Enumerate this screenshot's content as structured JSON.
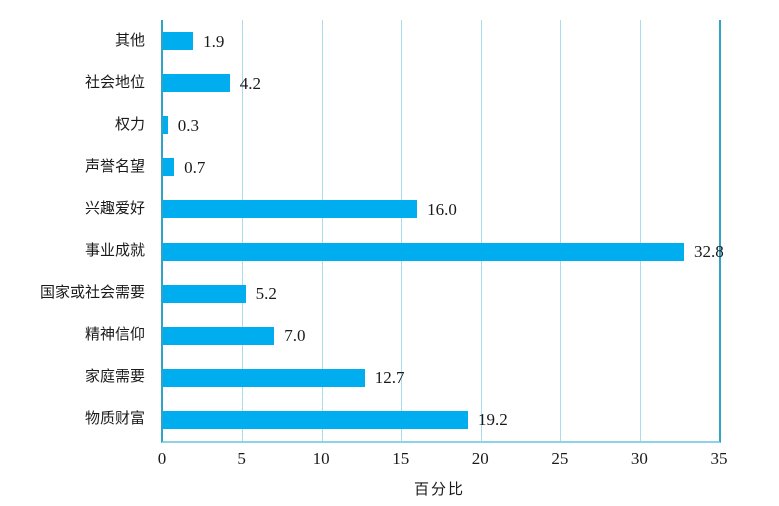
{
  "chart_data": {
    "type": "bar",
    "orientation": "horizontal",
    "title": "",
    "xlabel": "百分比",
    "ylabel": "",
    "categories": [
      "其他",
      "社会地位",
      "权力",
      "声誉名望",
      "兴趣爱好",
      "事业成就",
      "国家或社会需要",
      "精神信仰",
      "家庭需要",
      "物质财富"
    ],
    "values": [
      1.9,
      4.2,
      0.3,
      0.7,
      16.0,
      32.8,
      5.2,
      7.0,
      12.7,
      19.2
    ],
    "value_labels": [
      "1.9",
      "4.2",
      "0.3",
      "0.7",
      "16.0",
      "32.8",
      "5.2",
      "7.0",
      "12.7",
      "19.2"
    ],
    "xlim": [
      0,
      35
    ],
    "x_ticks": [
      0,
      5,
      10,
      15,
      20,
      25,
      30,
      35
    ],
    "grid": "vertical-only",
    "legend_position": "none",
    "colors": {
      "bar": "#00AEEF",
      "gridline": "#A8DCEF",
      "frame": "#31A3C8",
      "baseline": "#8FD2E8",
      "text": "#1A1A1A",
      "background": "#FFFFFF"
    }
  }
}
